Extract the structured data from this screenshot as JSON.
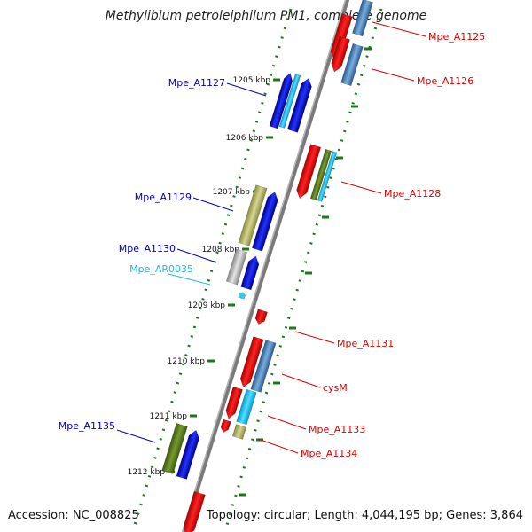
{
  "title": "Methylibium petroleiphilum PM1, complete genome",
  "footer": {
    "accession": "Accession: NC_008825",
    "summary": "Topology: circular; Length: 4,044,195 bp; Genes: 3,864"
  },
  "colors": {
    "backbone": "#888888",
    "tick": "#1a7a1a",
    "forward_label": "#0000cc",
    "reverse_label": "#dd0000",
    "rna_label": "#22bbdd"
  },
  "kbp_labels": [
    "1205 kbp",
    "1206 kbp",
    "1207 kbp",
    "1208 kbp",
    "1209 kbp",
    "1210 kbp",
    "1211 kbp",
    "1212 kbp"
  ],
  "gene_labels": {
    "Mpe_A1125": "Mpe_A1125",
    "Mpe_A1126": "Mpe_A1126",
    "Mpe_A1127": "Mpe_A1127",
    "Mpe_A1128": "Mpe_A1128",
    "Mpe_A1129": "Mpe_A1129",
    "Mpe_A1130": "Mpe_A1130",
    "Mpe_AR0035": "Mpe_AR0035",
    "Mpe_A1131": "Mpe_A1131",
    "cysM": "cysM",
    "Mpe_A1133": "Mpe_A1133",
    "Mpe_A1134": "Mpe_A1134",
    "Mpe_A1135": "Mpe_A1135"
  }
}
